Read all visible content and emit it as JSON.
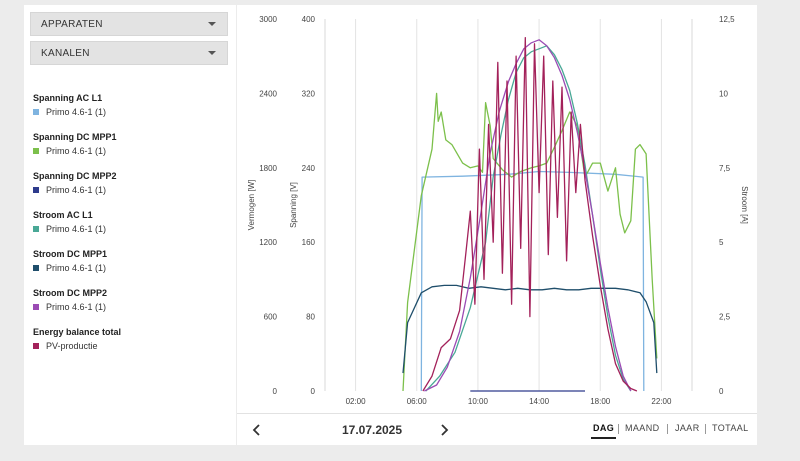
{
  "filters": {
    "apparaten": "APPARATEN",
    "kanalen": "KANALEN"
  },
  "legend": [
    {
      "title": "Spanning AC L1",
      "items": [
        {
          "label": "Primo 4.6-1 (1)",
          "color": "#7fb4e0"
        }
      ]
    },
    {
      "title": "Spanning DC MPP1",
      "items": [
        {
          "label": "Primo 4.6-1 (1)",
          "color": "#7cc04b"
        }
      ]
    },
    {
      "title": "Spanning DC MPP2",
      "items": [
        {
          "label": "Primo 4.6-1 (1)",
          "color": "#2e3b8c"
        }
      ]
    },
    {
      "title": "Stroom AC L1",
      "items": [
        {
          "label": "Primo 4.6-1 (1)",
          "color": "#49a896"
        }
      ]
    },
    {
      "title": "Stroom DC MPP1",
      "items": [
        {
          "label": "Primo 4.6-1 (1)",
          "color": "#1f4e6b"
        }
      ]
    },
    {
      "title": "Stroom DC MPP2",
      "items": [
        {
          "label": "Primo 4.6-1 (1)",
          "color": "#9b4bb4"
        }
      ]
    },
    {
      "title": "Energy balance total",
      "items": [
        {
          "label": "PV-productie",
          "color": "#a3215a"
        }
      ]
    }
  ],
  "chart_data": {
    "type": "line",
    "xlabel": "",
    "ylabel_left_outer": "Vermogen [W]",
    "ylabel_left_inner": "Spanning [V]",
    "ylabel_right": "Stroom [A]",
    "x_ticks": [
      "02:00",
      "06:00",
      "10:00",
      "14:00",
      "18:00",
      "22:00"
    ],
    "y_ticks_power": [
      "0",
      "600",
      "1200",
      "1800",
      "2400",
      "3000"
    ],
    "y_ticks_voltage": [
      "0",
      "80",
      "160",
      "240",
      "320",
      "400"
    ],
    "y_ticks_current": [
      "0",
      "2,5",
      "5",
      "7,5",
      "10",
      "12,5"
    ],
    "xlim_hours": [
      0,
      24
    ],
    "ylim_power": [
      0,
      3000
    ],
    "ylim_voltage": [
      0,
      400
    ],
    "ylim_current": [
      0,
      12.5
    ],
    "grid": "vertical",
    "series": [
      {
        "name": "Spanning AC L1",
        "axis": "voltage",
        "color": "#7fb4e0",
        "x": [
          6.3,
          6.35,
          9,
          12,
          14,
          16,
          19,
          20.8,
          20.85
        ],
        "y": [
          0,
          230,
          231,
          233,
          236,
          235,
          233,
          230,
          0
        ]
      },
      {
        "name": "Spanning DC MPP1",
        "axis": "voltage",
        "color": "#7cc04b",
        "x": [
          5.1,
          5.4,
          6.3,
          7.0,
          7.3,
          7.4,
          7.6,
          7.9,
          8.3,
          9.0,
          9.5,
          10.0,
          10.3,
          10.5,
          10.8,
          11.0,
          11.6,
          12.2,
          12.8,
          13.5,
          14.0,
          14.5,
          15.0,
          15.5,
          16.0,
          16.5,
          17.0,
          17.5,
          18.0,
          18.5,
          19.0,
          19.3,
          19.6,
          20.0,
          20.3,
          20.6,
          21.0,
          21.4,
          21.7
        ],
        "y": [
          0,
          95,
          210,
          260,
          320,
          290,
          300,
          270,
          265,
          245,
          240,
          242,
          235,
          310,
          285,
          250,
          238,
          230,
          236,
          240,
          242,
          245,
          262,
          280,
          300,
          285,
          230,
          245,
          245,
          215,
          240,
          190,
          170,
          183,
          260,
          265,
          255,
          120,
          35
        ]
      },
      {
        "name": "Spanning DC MPP2",
        "axis": "voltage",
        "color": "#2e3b8c",
        "x": [
          9.5,
          10.0,
          14.0,
          17.0
        ],
        "y": [
          0,
          0,
          0,
          0
        ]
      },
      {
        "name": "Stroom AC L1",
        "axis": "current",
        "color": "#49a896",
        "x": [
          6.6,
          7.5,
          8.5,
          9.5,
          10.5,
          11.0,
          11.5,
          12.0,
          12.5,
          13.0,
          13.5,
          14.0,
          14.5,
          15.0,
          15.5,
          16.0,
          16.5,
          17.0,
          17.5,
          18.0,
          18.5,
          19.0,
          19.5,
          20.0
        ],
        "y": [
          0,
          0.5,
          1.3,
          2.8,
          5.0,
          7.2,
          8.6,
          9.8,
          10.7,
          11.2,
          11.4,
          11.5,
          11.6,
          11.3,
          10.8,
          10.1,
          9.0,
          7.6,
          5.9,
          4.1,
          2.5,
          1.2,
          0.4,
          0
        ]
      },
      {
        "name": "Stroom DC MPP1",
        "axis": "current",
        "color": "#1f4e6b",
        "x": [
          5.1,
          5.4,
          6.3,
          7.0,
          7.8,
          8.6,
          9.4,
          10.2,
          11.0,
          11.8,
          12.6,
          13.4,
          14.2,
          15.0,
          15.8,
          16.6,
          17.4,
          18.2,
          19.0,
          19.8,
          20.6,
          21.0,
          21.5,
          21.7
        ],
        "y": [
          0.6,
          2.3,
          3.3,
          3.5,
          3.55,
          3.55,
          3.45,
          3.5,
          3.45,
          3.4,
          3.45,
          3.4,
          3.4,
          3.45,
          3.4,
          3.4,
          3.45,
          3.45,
          3.45,
          3.4,
          3.3,
          3.0,
          2.3,
          0.6
        ]
      },
      {
        "name": "Stroom DC MPP2",
        "axis": "current",
        "color": "#9b4bb4",
        "x": [
          6.5,
          7.3,
          8.0,
          8.8,
          9.5,
          10.2,
          10.8,
          11.4,
          12.0,
          12.5,
          13.0,
          13.5,
          14.0,
          14.5,
          15.0,
          15.5,
          16.0,
          16.5,
          17.0,
          17.5,
          18.0,
          18.5,
          19.0,
          19.5,
          20.0
        ],
        "y": [
          0,
          0.2,
          0.8,
          2.0,
          3.8,
          6.0,
          8.0,
          9.4,
          10.4,
          11.0,
          11.5,
          11.7,
          11.8,
          11.6,
          11.2,
          10.6,
          9.8,
          8.7,
          7.4,
          5.9,
          4.3,
          2.8,
          1.5,
          0.5,
          0
        ]
      },
      {
        "name": "PV-productie",
        "axis": "power",
        "color": "#a3215a",
        "x": [
          6.4,
          7.0,
          7.6,
          8.2,
          8.8,
          9.2,
          9.5,
          9.8,
          10.1,
          10.4,
          10.7,
          11.0,
          11.3,
          11.6,
          11.9,
          12.2,
          12.5,
          12.8,
          13.1,
          13.4,
          13.7,
          14.0,
          14.3,
          14.6,
          14.9,
          15.2,
          15.5,
          15.8,
          16.1,
          16.4,
          16.7,
          17.0,
          17.5,
          18.0,
          18.5,
          19.0,
          19.5,
          20.0,
          20.4
        ],
        "y": [
          0,
          120,
          350,
          420,
          650,
          1100,
          1450,
          700,
          1950,
          900,
          2150,
          1200,
          2650,
          950,
          2500,
          700,
          2700,
          1150,
          2850,
          600,
          2800,
          1600,
          2700,
          1100,
          2500,
          1400,
          2450,
          1050,
          2250,
          1600,
          2150,
          1700,
          1250,
          850,
          500,
          220,
          80,
          20,
          0
        ]
      }
    ]
  },
  "navigation": {
    "date": "17.07.2025",
    "tabs": [
      "DAG",
      "MAAND",
      "JAAR",
      "TOTAAL"
    ],
    "active_tab": "DAG"
  }
}
